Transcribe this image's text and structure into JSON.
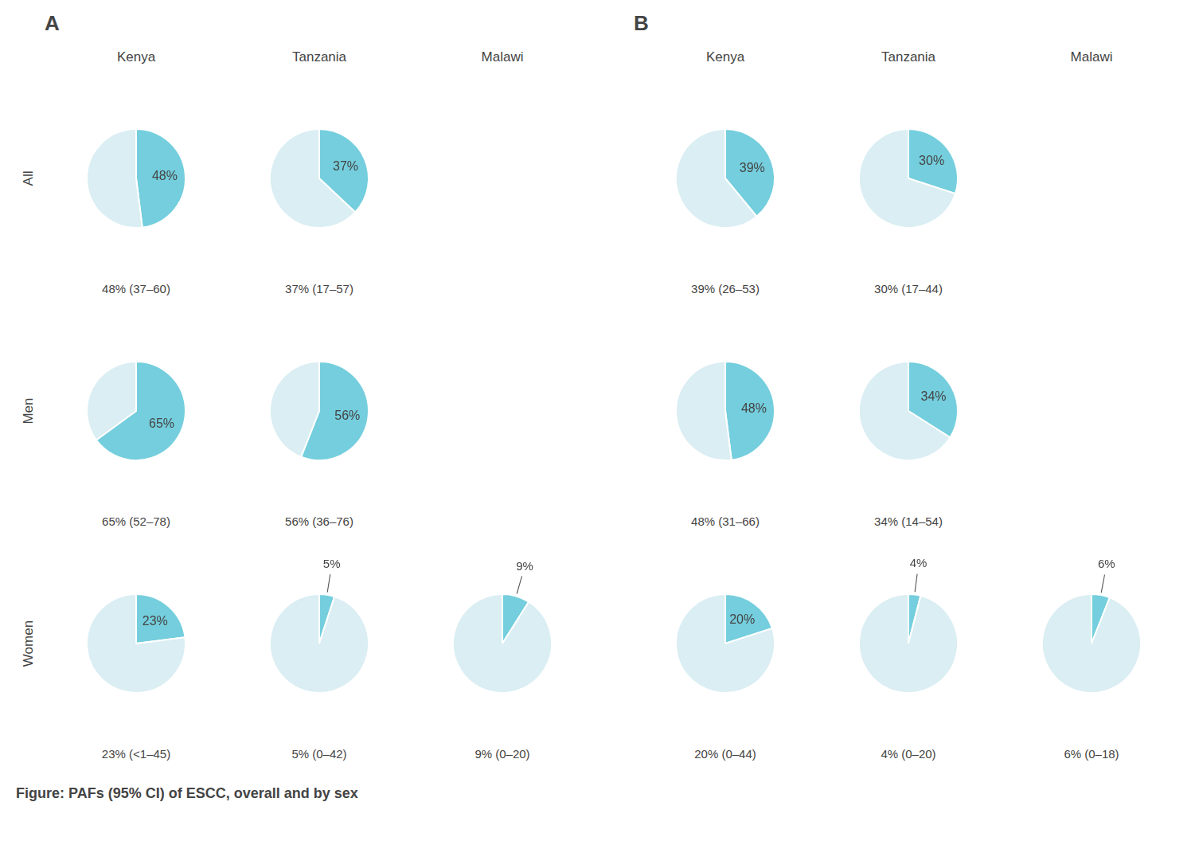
{
  "chart_data": {
    "type": "pie",
    "title": "Figure: PAFs (95% CI) of ESCC, overall and by sex",
    "columns": [
      "Kenya",
      "Tanzania",
      "Malawi"
    ],
    "rows": [
      "All",
      "Men",
      "Women"
    ],
    "colors": [
      "#74cedd",
      "#daeef3"
    ],
    "panels": [
      {
        "title": "A",
        "pies": [
          [
            {
              "values": [
                48,
                52
              ],
              "value_labels": [
                "48%",
                null
              ],
              "annotations": [
                "48% (37–60)"
              ]
            },
            {
              "values": [
                37,
                63
              ],
              "value_labels": [
                "37%",
                null
              ],
              "annotations": [
                "37% (17–57)"
              ]
            },
            null
          ],
          [
            {
              "values": [
                65,
                35
              ],
              "value_labels": [
                "65%",
                null
              ],
              "annotations": [
                "65% (52–78)"
              ]
            },
            {
              "values": [
                56,
                44
              ],
              "value_labels": [
                "56%",
                null
              ],
              "annotations": [
                "56% (36–76)"
              ]
            },
            null
          ],
          [
            {
              "values": [
                23,
                77
              ],
              "value_labels": [
                "23%",
                null
              ],
              "annotations": [
                "23% (<1–45)"
              ]
            },
            {
              "values": [
                5,
                95
              ],
              "value_labels": [
                "5%",
                null
              ],
              "annotations": [
                "5% (0–42)"
              ]
            },
            {
              "values": [
                9,
                91
              ],
              "value_labels": [
                "9%",
                null
              ],
              "annotations": [
                "9% (0–20)"
              ]
            }
          ]
        ]
      },
      {
        "title": "B",
        "pies": [
          [
            {
              "values": [
                39,
                61
              ],
              "value_labels": [
                "39%",
                null
              ],
              "annotations": [
                "39% (26–53)"
              ]
            },
            {
              "values": [
                30,
                70
              ],
              "value_labels": [
                "30%",
                null
              ],
              "annotations": [
                "30% (17–44)"
              ]
            },
            null
          ],
          [
            {
              "values": [
                48,
                52
              ],
              "value_labels": [
                "48%",
                null
              ],
              "annotations": [
                "48% (31–66)"
              ]
            },
            {
              "values": [
                34,
                66
              ],
              "value_labels": [
                "34%",
                null
              ],
              "annotations": [
                "34% (14–54)"
              ]
            },
            null
          ],
          [
            {
              "values": [
                20,
                80
              ],
              "value_labels": [
                "20%",
                null
              ],
              "annotations": [
                "20% (0–44)"
              ]
            },
            {
              "values": [
                4,
                96
              ],
              "value_labels": [
                "4%",
                null
              ],
              "annotations": [
                "4% (0–20)"
              ]
            },
            {
              "values": [
                6,
                94
              ],
              "value_labels": [
                "6%",
                null
              ],
              "annotations": [
                "6% (0–18)"
              ]
            }
          ]
        ]
      }
    ]
  }
}
